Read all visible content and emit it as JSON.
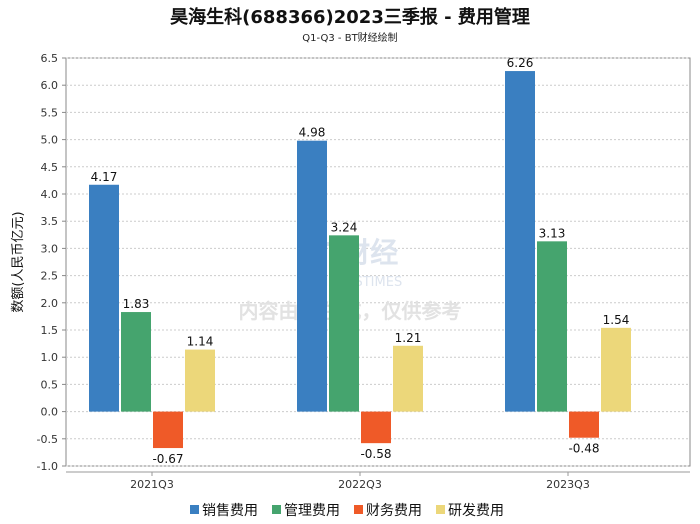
{
  "chart_data": {
    "type": "bar",
    "title": "昊海生科(688366)2023三季报 - 费用管理",
    "subtitle": "Q1-Q3 - BT财经绘制",
    "ylabel": "数额(人民币亿元)",
    "xlabel": "",
    "ylim": [
      -1.0,
      6.5
    ],
    "yticks": [
      "-1.0",
      "-0.5",
      "0.0",
      "0.5",
      "1.0",
      "1.5",
      "2.0",
      "2.5",
      "3.0",
      "3.5",
      "4.0",
      "4.5",
      "5.0",
      "5.5",
      "6.0",
      "6.5"
    ],
    "grid": true,
    "legend_position": "bottom",
    "categories": [
      "2021Q3",
      "2022Q3",
      "2023Q3"
    ],
    "series": [
      {
        "name": "销售费用",
        "color": "#3a7fc1",
        "values": [
          4.17,
          4.98,
          6.26
        ]
      },
      {
        "name": "管理费用",
        "color": "#45a46e",
        "values": [
          1.83,
          3.24,
          3.13
        ]
      },
      {
        "name": "财务费用",
        "color": "#ef5a28",
        "values": [
          -0.67,
          -0.58,
          -0.48
        ]
      },
      {
        "name": "研发费用",
        "color": "#ecd77a",
        "values": [
          1.14,
          1.21,
          1.54
        ]
      }
    ],
    "watermark": [
      "BT财经",
      "BUSINESSTIMES",
      "内容由AI生成，仅供参考"
    ]
  }
}
